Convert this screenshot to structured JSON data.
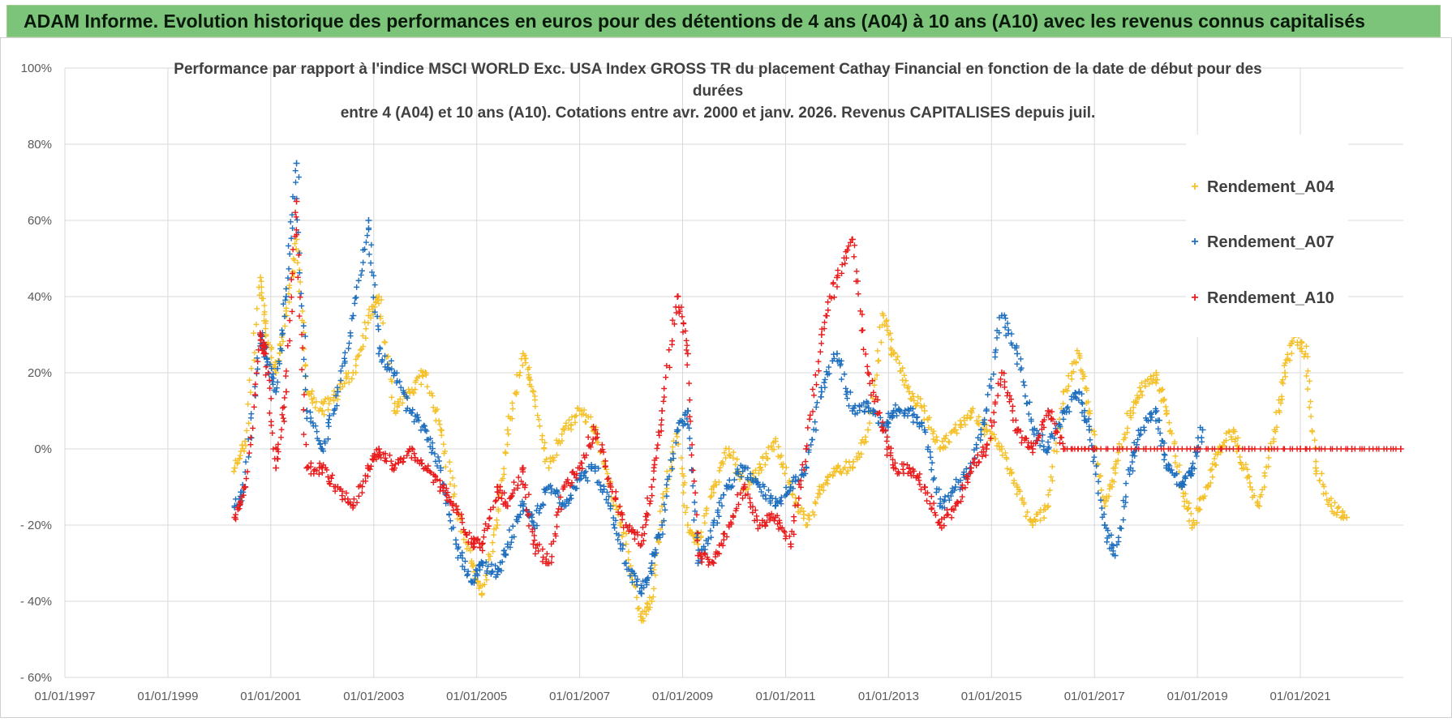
{
  "banner": {
    "title": "ADAM Informe. Evolution historique des performances en euros pour des détentions de 4 ans (A04) à 10 ans (A10) avec les revenus connus capitalisés"
  },
  "chart_data": {
    "type": "scatter",
    "title_lines": [
      "Performance par rapport à l'indice MSCI WORLD Exc. USA Index GROSS TR  du placement Cathay Financial  en fonction de la date de début pour des",
      "durées",
      "entre 4 (A04) et 10 ans (A10).  Cotations entre avr. 2000 et janv. 2026. Revenus CAPITALISES  depuis juil."
    ],
    "x_ticks": [
      "01/01/1997",
      "01/01/1999",
      "01/01/2001",
      "01/01/2003",
      "01/01/2005",
      "01/01/2007",
      "01/01/2009",
      "01/01/2011",
      "01/01/2013",
      "01/01/2015",
      "01/01/2017",
      "01/01/2019",
      "01/01/2021"
    ],
    "y_ticks": [
      "100%",
      "80%",
      "60%",
      "40%",
      "20%",
      "0%",
      "- 20%",
      "- 40%",
      "- 60%"
    ],
    "y_tick_values": [
      100,
      80,
      60,
      40,
      20,
      0,
      -20,
      -40,
      -60
    ],
    "xlim": [
      1997.0,
      2023.0
    ],
    "ylim": [
      -60,
      100
    ],
    "grid": true,
    "legend_position": "top-right",
    "series": [
      {
        "name": "Rendement_A04",
        "color": "#f5c12a",
        "points": [
          [
            2000.3,
            -5
          ],
          [
            2000.5,
            2
          ],
          [
            2000.8,
            45
          ],
          [
            2000.9,
            30
          ],
          [
            2001.1,
            20
          ],
          [
            2001.3,
            35
          ],
          [
            2001.5,
            55
          ],
          [
            2001.7,
            15
          ],
          [
            2002.0,
            10
          ],
          [
            2002.3,
            15
          ],
          [
            2002.6,
            20
          ],
          [
            2002.9,
            35
          ],
          [
            2003.1,
            40
          ],
          [
            2003.4,
            10
          ],
          [
            2003.7,
            15
          ],
          [
            2004.0,
            20
          ],
          [
            2004.3,
            5
          ],
          [
            2004.6,
            -15
          ],
          [
            2004.9,
            -30
          ],
          [
            2005.1,
            -38
          ],
          [
            2005.4,
            -20
          ],
          [
            2005.6,
            5
          ],
          [
            2005.9,
            25
          ],
          [
            2006.1,
            15
          ],
          [
            2006.4,
            -5
          ],
          [
            2006.7,
            5
          ],
          [
            2007.0,
            10
          ],
          [
            2007.3,
            5
          ],
          [
            2007.6,
            -10
          ],
          [
            2007.9,
            -25
          ],
          [
            2008.2,
            -45
          ],
          [
            2008.4,
            -40
          ],
          [
            2008.6,
            -15
          ],
          [
            2008.9,
            5
          ],
          [
            2009.1,
            -20
          ],
          [
            2009.3,
            -25
          ],
          [
            2009.6,
            -10
          ],
          [
            2009.9,
            0
          ],
          [
            2010.2,
            -10
          ],
          [
            2010.5,
            -5
          ],
          [
            2010.8,
            2
          ],
          [
            2011.1,
            -10
          ],
          [
            2011.4,
            -20
          ],
          [
            2011.7,
            -10
          ],
          [
            2012.0,
            -5
          ],
          [
            2012.3,
            -5
          ],
          [
            2012.6,
            5
          ],
          [
            2012.9,
            35
          ],
          [
            2013.1,
            25
          ],
          [
            2013.4,
            15
          ],
          [
            2013.7,
            10
          ],
          [
            2014.0,
            0
          ],
          [
            2014.3,
            5
          ],
          [
            2014.6,
            10
          ],
          [
            2014.9,
            5
          ],
          [
            2015.2,
            0
          ],
          [
            2015.5,
            -10
          ],
          [
            2015.8,
            -20
          ],
          [
            2016.1,
            -15
          ],
          [
            2016.4,
            15
          ],
          [
            2016.7,
            25
          ],
          [
            2016.9,
            10
          ],
          [
            2017.2,
            -15
          ],
          [
            2017.4,
            -5
          ],
          [
            2017.7,
            10
          ],
          [
            2017.9,
            15
          ],
          [
            2018.2,
            20
          ],
          [
            2018.4,
            10
          ],
          [
            2018.7,
            -10
          ],
          [
            2018.9,
            -20
          ],
          [
            2019.2,
            -10
          ],
          [
            2019.4,
            0
          ],
          [
            2019.7,
            5
          ],
          [
            2019.9,
            -5
          ],
          [
            2020.2,
            -15
          ],
          [
            2020.5,
            5
          ],
          [
            2020.7,
            20
          ],
          [
            2020.9,
            30
          ],
          [
            2021.1,
            25
          ],
          [
            2021.3,
            -5
          ],
          [
            2021.6,
            -15
          ],
          [
            2021.9,
            -18
          ]
        ]
      },
      {
        "name": "Rendement_A07",
        "color": "#1f6fbf",
        "points": [
          [
            2000.3,
            -15
          ],
          [
            2000.5,
            -10
          ],
          [
            2000.8,
            30
          ],
          [
            2000.9,
            25
          ],
          [
            2001.1,
            15
          ],
          [
            2001.3,
            40
          ],
          [
            2001.5,
            75
          ],
          [
            2001.7,
            10
          ],
          [
            2002.0,
            0
          ],
          [
            2002.3,
            15
          ],
          [
            2002.6,
            35
          ],
          [
            2002.9,
            60
          ],
          [
            2003.1,
            25
          ],
          [
            2003.4,
            20
          ],
          [
            2003.7,
            10
          ],
          [
            2004.0,
            5
          ],
          [
            2004.3,
            -5
          ],
          [
            2004.6,
            -25
          ],
          [
            2004.9,
            -35
          ],
          [
            2005.1,
            -30
          ],
          [
            2005.4,
            -33
          ],
          [
            2005.6,
            -25
          ],
          [
            2005.9,
            -15
          ],
          [
            2006.1,
            -20
          ],
          [
            2006.4,
            -10
          ],
          [
            2006.7,
            -15
          ],
          [
            2007.0,
            -8
          ],
          [
            2007.3,
            -5
          ],
          [
            2007.6,
            -15
          ],
          [
            2007.9,
            -30
          ],
          [
            2008.2,
            -38
          ],
          [
            2008.4,
            -30
          ],
          [
            2008.6,
            -20
          ],
          [
            2008.9,
            5
          ],
          [
            2009.1,
            10
          ],
          [
            2009.3,
            -30
          ],
          [
            2009.6,
            -20
          ],
          [
            2009.9,
            -10
          ],
          [
            2010.2,
            -5
          ],
          [
            2010.5,
            -10
          ],
          [
            2010.8,
            -15
          ],
          [
            2011.1,
            -10
          ],
          [
            2011.4,
            -5
          ],
          [
            2011.7,
            15
          ],
          [
            2012.0,
            25
          ],
          [
            2012.3,
            10
          ],
          [
            2012.6,
            12
          ],
          [
            2012.9,
            5
          ],
          [
            2013.1,
            10
          ],
          [
            2013.4,
            10
          ],
          [
            2013.7,
            5
          ],
          [
            2014.0,
            -15
          ],
          [
            2014.3,
            -10
          ],
          [
            2014.6,
            -5
          ],
          [
            2014.9,
            10
          ],
          [
            2015.2,
            35
          ],
          [
            2015.5,
            25
          ],
          [
            2015.8,
            5
          ],
          [
            2016.1,
            0
          ],
          [
            2016.4,
            10
          ],
          [
            2016.7,
            15
          ],
          [
            2016.9,
            5
          ],
          [
            2017.2,
            -20
          ],
          [
            2017.4,
            -28
          ],
          [
            2017.7,
            -5
          ],
          [
            2017.9,
            5
          ],
          [
            2018.2,
            10
          ],
          [
            2018.4,
            -5
          ],
          [
            2018.7,
            -10
          ],
          [
            2018.9,
            -5
          ],
          [
            2019.1,
            5
          ]
        ]
      },
      {
        "name": "Rendement_A10",
        "color": "#e81c1c",
        "points": [
          [
            2000.3,
            -18
          ],
          [
            2000.5,
            -10
          ],
          [
            2000.8,
            30
          ],
          [
            2000.9,
            25
          ],
          [
            2001.1,
            -5
          ],
          [
            2001.3,
            15
          ],
          [
            2001.5,
            65
          ],
          [
            2001.7,
            -5
          ],
          [
            2002.0,
            -5
          ],
          [
            2002.3,
            -10
          ],
          [
            2002.6,
            -15
          ],
          [
            2002.9,
            -5
          ],
          [
            2003.1,
            0
          ],
          [
            2003.4,
            -5
          ],
          [
            2003.7,
            0
          ],
          [
            2004.0,
            -5
          ],
          [
            2004.3,
            -10
          ],
          [
            2004.6,
            -15
          ],
          [
            2004.9,
            -25
          ],
          [
            2005.1,
            -25
          ],
          [
            2005.4,
            -10
          ],
          [
            2005.6,
            -15
          ],
          [
            2005.9,
            -5
          ],
          [
            2006.1,
            -25
          ],
          [
            2006.4,
            -30
          ],
          [
            2006.7,
            -10
          ],
          [
            2007.0,
            -5
          ],
          [
            2007.3,
            5
          ],
          [
            2007.6,
            -10
          ],
          [
            2007.9,
            -20
          ],
          [
            2008.2,
            -25
          ],
          [
            2008.4,
            -10
          ],
          [
            2008.6,
            10
          ],
          [
            2008.9,
            40
          ],
          [
            2009.1,
            25
          ],
          [
            2009.3,
            -28
          ],
          [
            2009.6,
            -30
          ],
          [
            2009.9,
            -20
          ],
          [
            2010.2,
            -10
          ],
          [
            2010.5,
            -20
          ],
          [
            2010.8,
            -18
          ],
          [
            2011.1,
            -25
          ],
          [
            2011.4,
            0
          ],
          [
            2011.7,
            30
          ],
          [
            2012.0,
            45
          ],
          [
            2012.3,
            55
          ],
          [
            2012.6,
            20
          ],
          [
            2012.9,
            5
          ],
          [
            2013.1,
            -5
          ],
          [
            2013.4,
            -5
          ],
          [
            2013.7,
            -10
          ],
          [
            2014.0,
            -20
          ],
          [
            2014.3,
            -15
          ],
          [
            2014.6,
            -5
          ],
          [
            2014.9,
            0
          ],
          [
            2015.2,
            20
          ],
          [
            2015.5,
            5
          ],
          [
            2015.8,
            0
          ],
          [
            2016.1,
            10
          ],
          [
            2016.4,
            0
          ],
          [
            2017.0,
            0
          ],
          [
            2018.0,
            0
          ],
          [
            2019.0,
            0
          ],
          [
            2020.0,
            0
          ],
          [
            2021.0,
            0
          ],
          [
            2022.0,
            0
          ],
          [
            2022.95,
            0
          ]
        ]
      }
    ]
  }
}
